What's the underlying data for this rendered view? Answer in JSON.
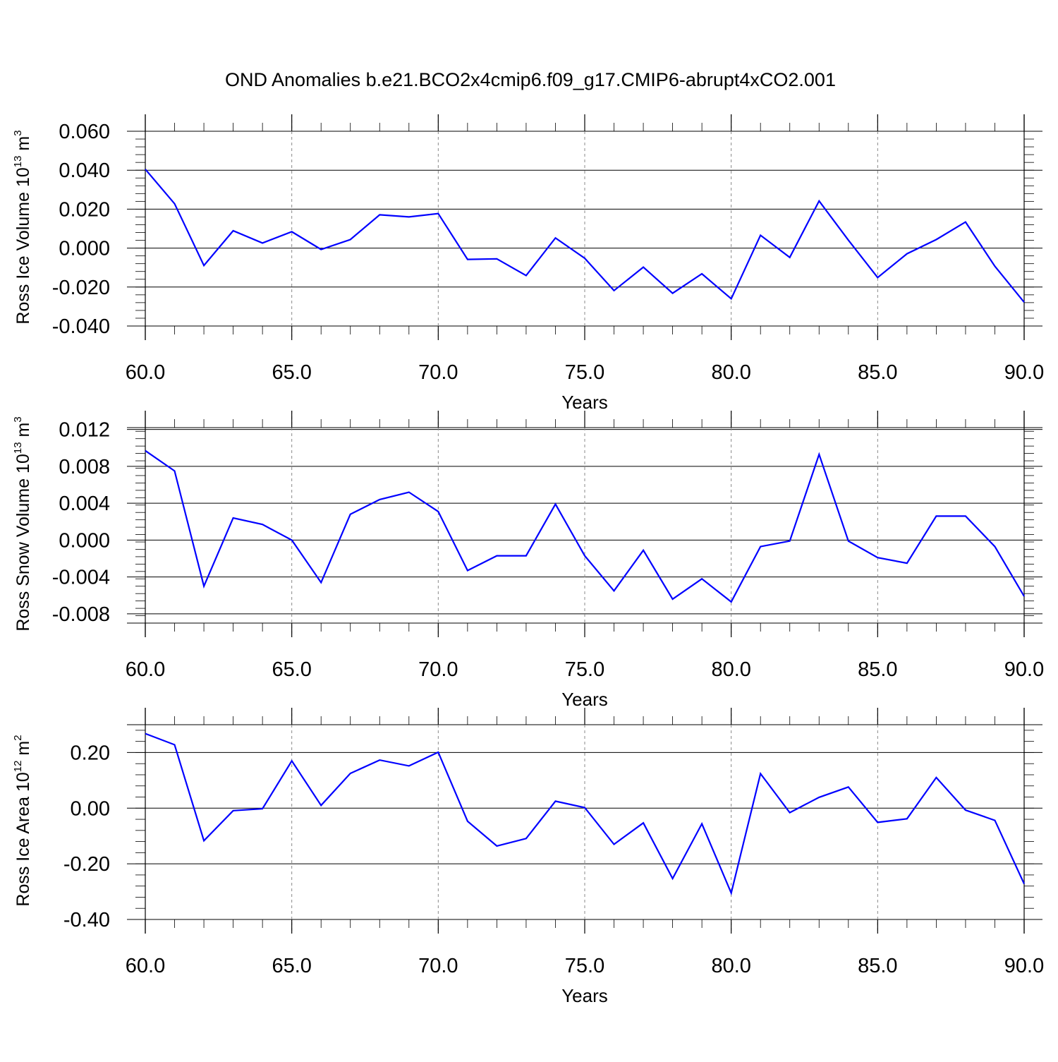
{
  "title": "OND Anomalies b.e21.BCO2x4cmip6.f09_g17.CMIP6-abrupt4xCO2.001",
  "colors": {
    "line": "#0000ff",
    "axis": "#000000",
    "grid": "#888888"
  },
  "chart_data": [
    {
      "type": "line",
      "xlabel": "Years",
      "ylabel": {
        "text": "Ross Ice Volume 10",
        "exp": "13",
        "unit": " m",
        "unit_exp": "3"
      },
      "xlim": [
        60,
        90
      ],
      "ylim": [
        -0.04,
        0.06
      ],
      "x_ticks": [
        "60.0",
        "65.0",
        "70.0",
        "75.0",
        "80.0",
        "85.0",
        "90.0"
      ],
      "y_ticks": [
        "-0.040",
        "-0.020",
        "0.000",
        "0.020",
        "0.040",
        "0.060"
      ],
      "x_grid": true,
      "x": [
        60,
        61,
        62,
        63,
        64,
        65,
        66,
        67,
        68,
        69,
        70,
        71,
        72,
        73,
        74,
        75,
        76,
        77,
        78,
        79,
        80,
        81,
        82,
        83,
        84,
        85,
        86,
        87,
        88,
        89,
        90
      ],
      "values": [
        0.0405,
        0.0228,
        -0.0089,
        0.0089,
        0.0026,
        0.0084,
        -0.0007,
        0.0044,
        0.0171,
        0.016,
        0.0177,
        -0.0058,
        -0.0055,
        -0.0141,
        0.0052,
        -0.0052,
        -0.0218,
        -0.0098,
        -0.0232,
        -0.0132,
        -0.026,
        0.0066,
        -0.0048,
        0.0242,
        0.0041,
        -0.0151,
        -0.0029,
        0.0044,
        0.0134,
        -0.0093,
        -0.0278
      ]
    },
    {
      "type": "line",
      "xlabel": "Years",
      "ylabel": {
        "text": "Ross Snow Volume 10",
        "exp": "13",
        "unit": " m",
        "unit_exp": "3"
      },
      "xlim": [
        60,
        90
      ],
      "ylim": [
        -0.009,
        0.0122
      ],
      "x_ticks": [
        "60.0",
        "65.0",
        "70.0",
        "75.0",
        "80.0",
        "85.0",
        "90.0"
      ],
      "y_ticks": [
        "-0.008",
        "-0.004",
        "0.000",
        "0.004",
        "0.008",
        "0.012"
      ],
      "x_grid": true,
      "x": [
        60,
        61,
        62,
        63,
        64,
        65,
        66,
        67,
        68,
        69,
        70,
        71,
        72,
        73,
        74,
        75,
        76,
        77,
        78,
        79,
        80,
        81,
        82,
        83,
        84,
        85,
        86,
        87,
        88,
        89,
        90
      ],
      "values": [
        0.0097,
        0.0075,
        -0.005,
        0.0024,
        0.0017,
        0.0,
        -0.0046,
        0.0028,
        0.0044,
        0.0052,
        0.0031,
        -0.0033,
        -0.0017,
        -0.0017,
        0.0039,
        -0.0017,
        -0.0055,
        -0.0011,
        -0.0064,
        -0.0042,
        -0.0067,
        -0.0007,
        -0.0001,
        0.0093,
        -0.0001,
        -0.0019,
        -0.0025,
        0.0026,
        0.0026,
        -0.0007,
        -0.0061
      ]
    },
    {
      "type": "line",
      "xlabel": "Years",
      "ylabel": {
        "text": "Ross Ice Area 10",
        "exp": "12",
        "unit": " m",
        "unit_exp": "2"
      },
      "xlim": [
        60,
        90
      ],
      "ylim": [
        -0.4,
        0.3
      ],
      "x_ticks": [
        "60.0",
        "65.0",
        "70.0",
        "75.0",
        "80.0",
        "85.0",
        "90.0"
      ],
      "y_ticks": [
        "-0.40",
        "-0.20",
        "0.00",
        "0.20"
      ],
      "x_grid": true,
      "x": [
        60,
        61,
        62,
        63,
        64,
        65,
        66,
        67,
        68,
        69,
        70,
        71,
        72,
        73,
        74,
        75,
        76,
        77,
        78,
        79,
        80,
        81,
        82,
        83,
        84,
        85,
        86,
        87,
        88,
        89,
        90
      ],
      "values": [
        0.268,
        0.228,
        -0.117,
        -0.009,
        -0.002,
        0.17,
        0.01,
        0.125,
        0.173,
        0.152,
        0.201,
        -0.047,
        -0.136,
        -0.109,
        0.025,
        0.002,
        -0.13,
        -0.053,
        -0.253,
        -0.056,
        -0.305,
        0.124,
        -0.016,
        0.039,
        0.076,
        -0.051,
        -0.038,
        0.11,
        -0.007,
        -0.044,
        -0.272
      ]
    }
  ]
}
